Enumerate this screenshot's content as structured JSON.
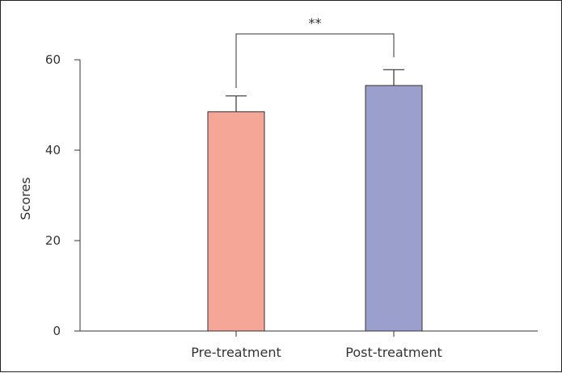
{
  "chart_data": {
    "type": "bar",
    "categories": [
      "Pre-treatment",
      "Post-treatment"
    ],
    "values": [
      48.5,
      54.3
    ],
    "error_upper": [
      52.0,
      57.8
    ],
    "ylabel": "Scores",
    "xlabel": "",
    "ylim": [
      0,
      60
    ],
    "yticks": [
      0,
      20,
      40,
      60
    ],
    "colors": [
      "#f5a697",
      "#9b9fcc"
    ],
    "significance": {
      "label": "**",
      "between": [
        0,
        1
      ]
    },
    "grid": false
  }
}
